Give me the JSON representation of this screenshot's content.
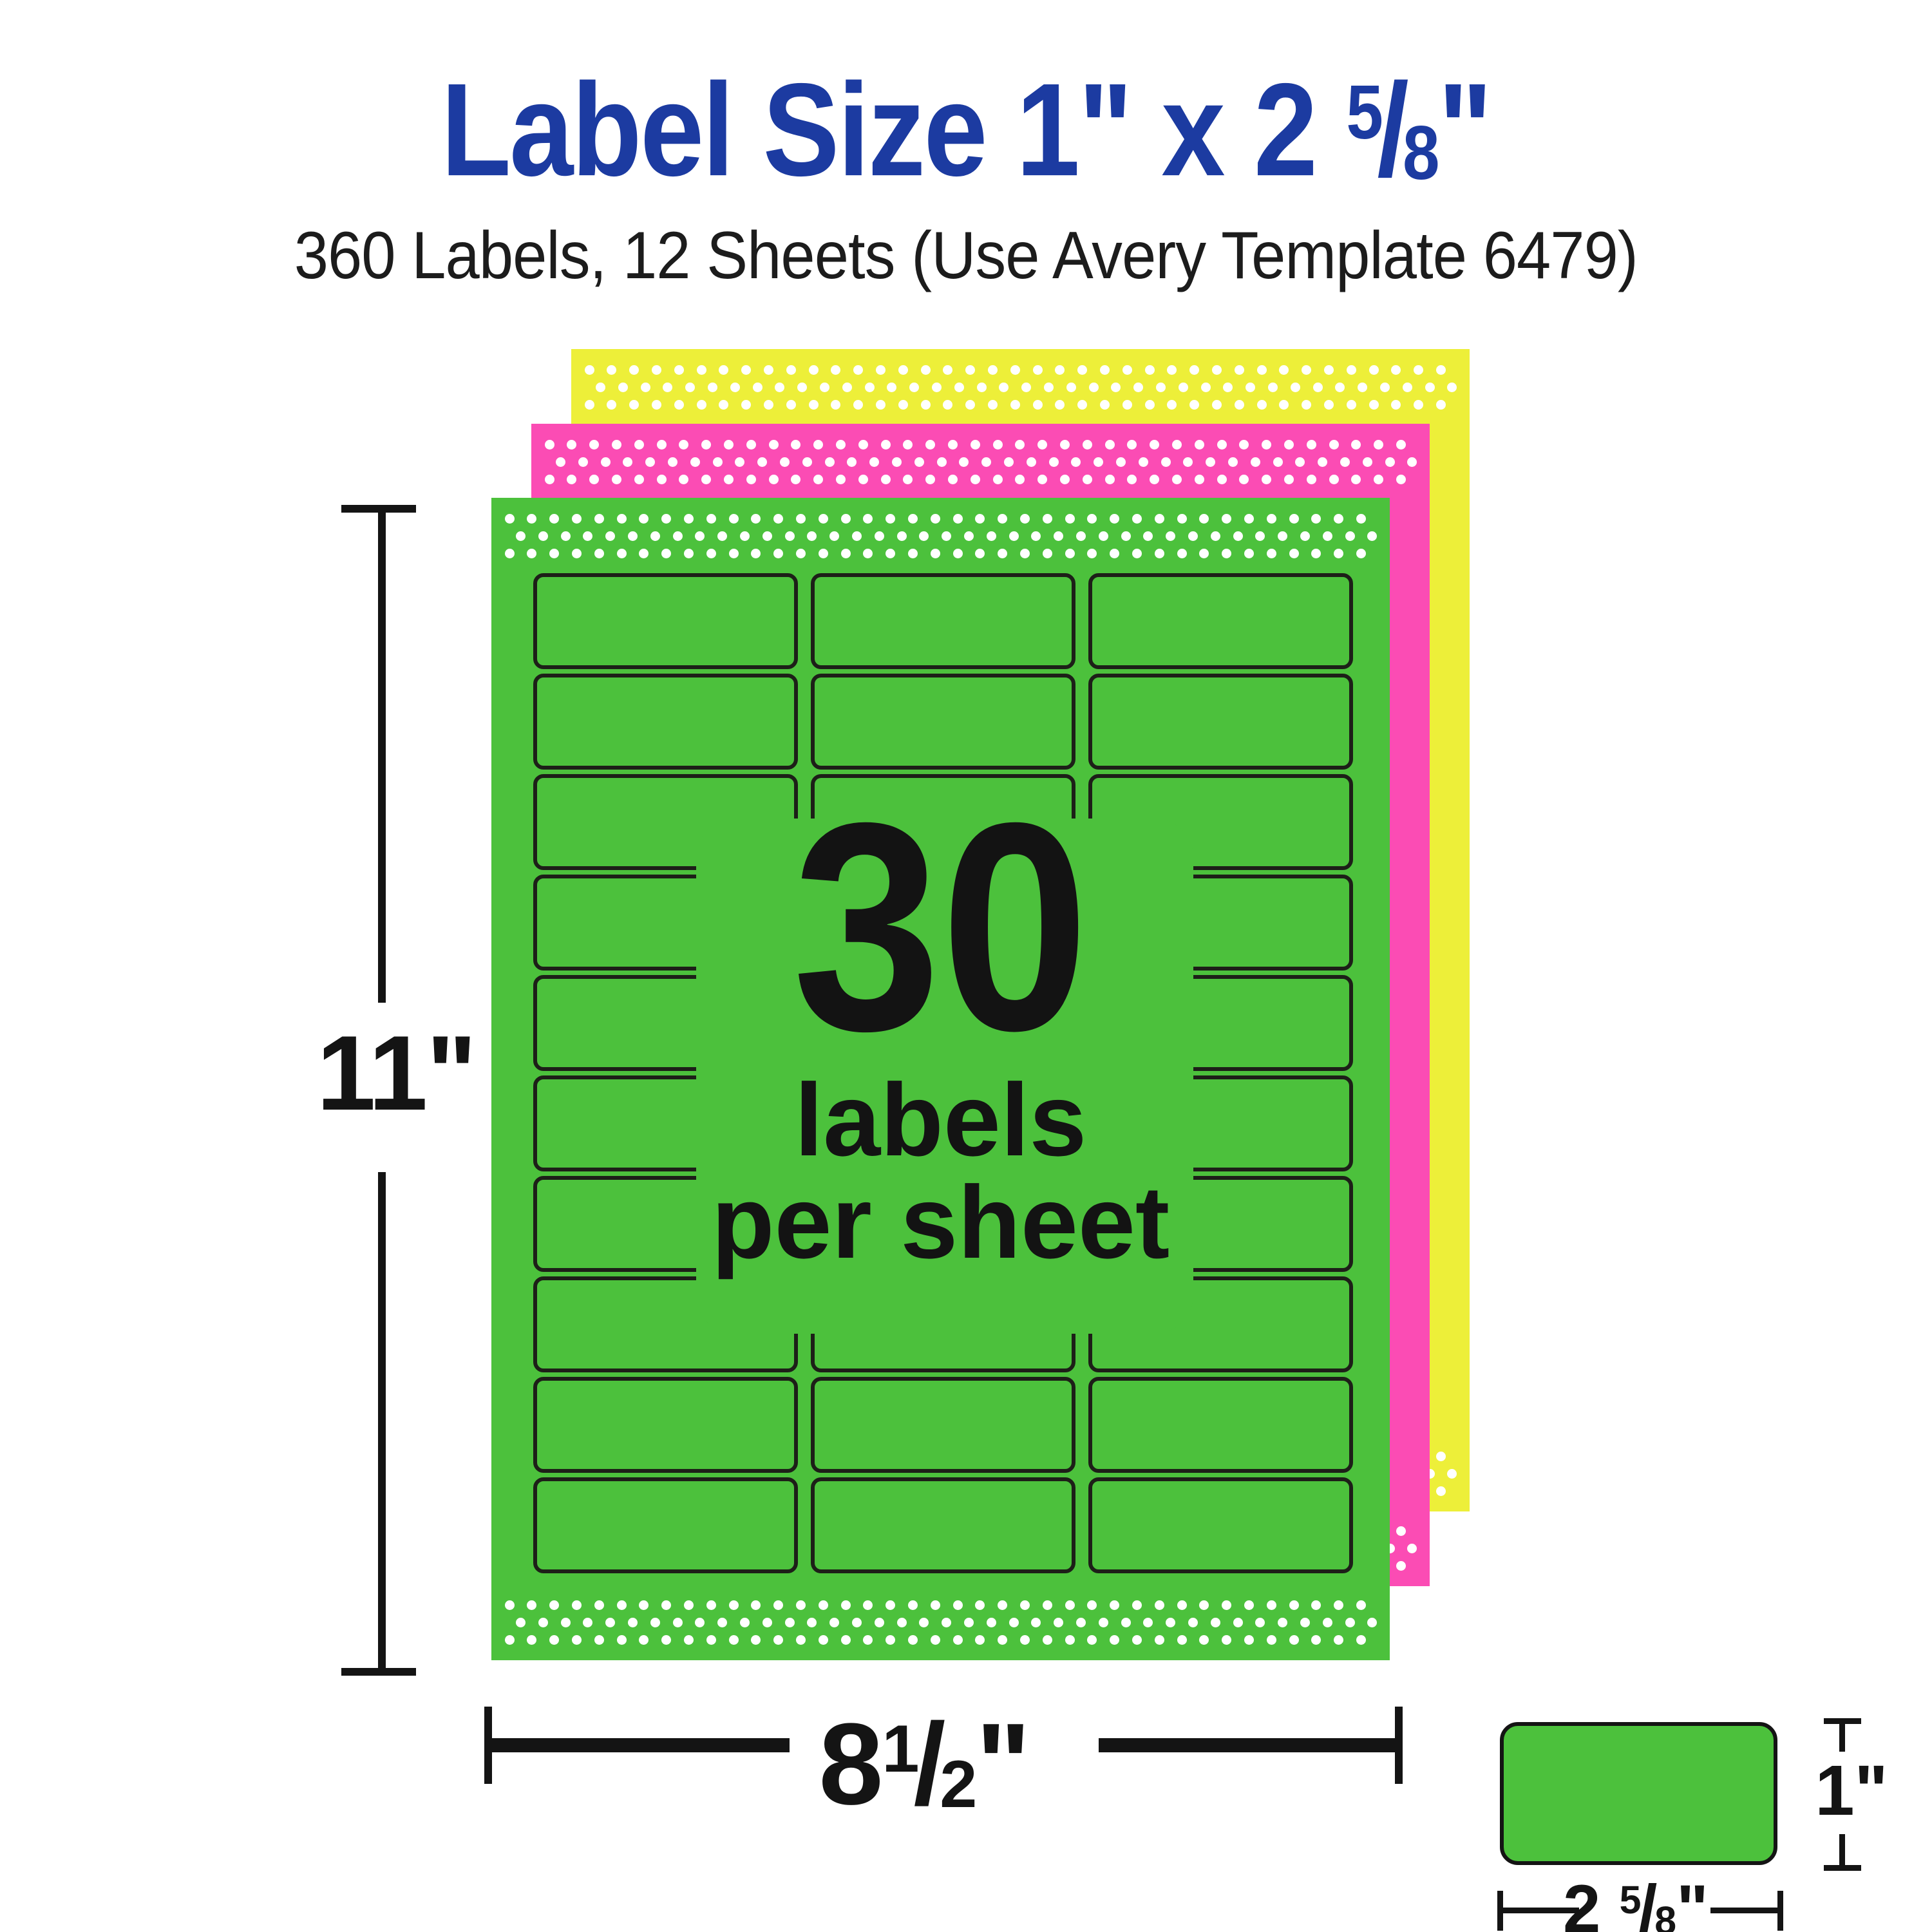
{
  "colors": {
    "green": "#4cc13c",
    "pink": "#fb4cb4",
    "yellow": "#edef39",
    "blue": "#1c3ba1",
    "outline": "#1d1f18",
    "ink": "#141414",
    "dot": "#ffffff"
  },
  "title": {
    "before": "Label Size 1\" x 2 ",
    "frac_num": "5",
    "frac_slash": "/",
    "frac_den": "8",
    "after": "\""
  },
  "subtitle": "360 Labels, 12 Sheets (Use Avery Template 6479)",
  "sheet": {
    "count": "30",
    "line2": "labels",
    "line3": "per sheet",
    "rows": 10,
    "cols": 3
  },
  "dims": {
    "height": "11\"",
    "width_whole": "8",
    "width_frac_num": "1",
    "width_frac_slash": "/",
    "width_frac_den": "2",
    "width_suffix": "\""
  },
  "mini": {
    "height": "1\"",
    "width_whole": "2 ",
    "width_frac_num": "5",
    "width_frac_slash": "/",
    "width_frac_den": "8",
    "width_suffix": "\""
  }
}
